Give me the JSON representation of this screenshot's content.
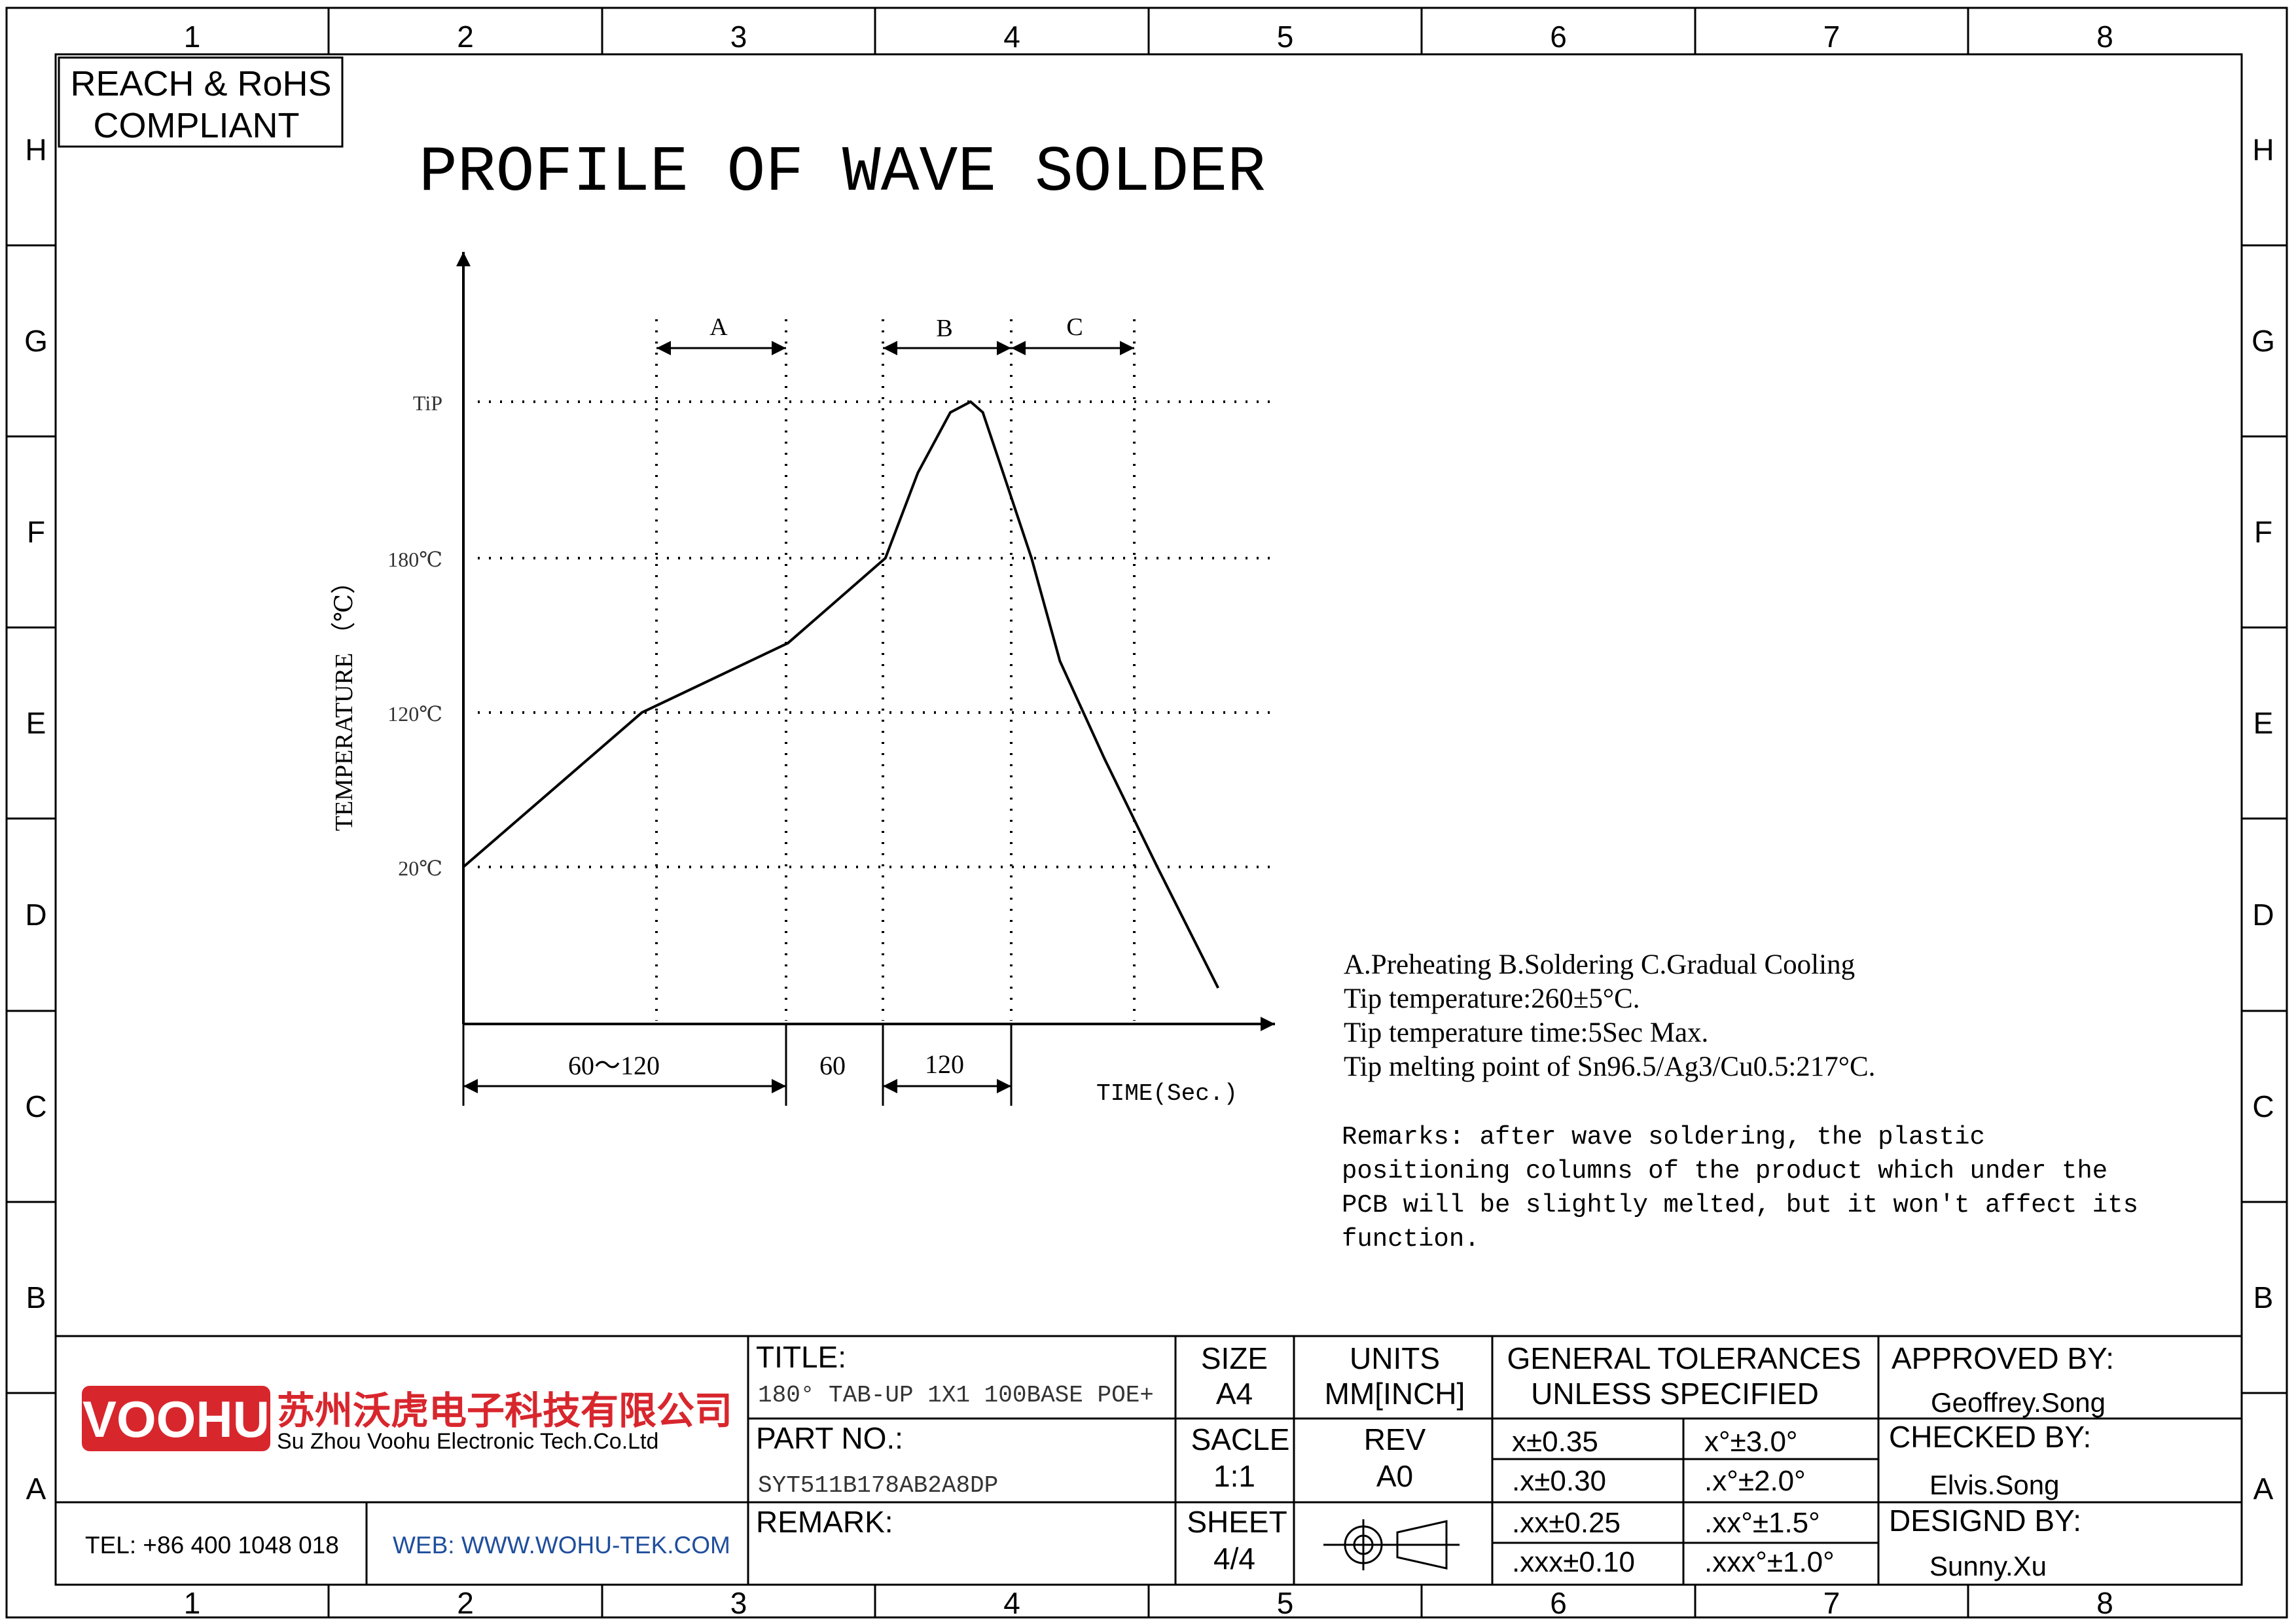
{
  "border": {
    "columns": [
      "1",
      "2",
      "3",
      "4",
      "5",
      "6",
      "7",
      "8"
    ],
    "rows": [
      "H",
      "G",
      "F",
      "E",
      "D",
      "C",
      "B",
      "A"
    ]
  },
  "compliance": {
    "line1": "REACH & RoHS",
    "line2": "COMPLIANT"
  },
  "title": "PROFILE OF WAVE SOLDER",
  "chart_data": {
    "type": "line",
    "ylabel": "TEMPERATURE （℃）",
    "xlabel": "TIME(Sec.)",
    "y_ticks": [
      "20℃",
      "120℃",
      "180℃",
      "TiP"
    ],
    "zones": [
      {
        "label": "A",
        "name": "Preheating"
      },
      {
        "label": "B",
        "name": "Soldering"
      },
      {
        "label": "C",
        "name": "Gradual Cooling"
      }
    ],
    "durations": [
      "60～120",
      "60",
      "120"
    ],
    "curve_points_relative": [
      [
        0.0,
        20
      ],
      [
        0.22,
        120
      ],
      [
        0.4,
        147
      ],
      [
        0.52,
        180
      ],
      [
        0.56,
        228
      ],
      [
        0.6,
        262
      ],
      [
        0.625,
        268
      ],
      [
        0.64,
        262
      ],
      [
        0.665,
        228
      ],
      [
        0.7,
        180
      ],
      [
        0.735,
        140
      ],
      [
        0.79,
        90
      ],
      [
        0.855,
        20
      ],
      [
        0.93,
        -60
      ]
    ]
  },
  "notes": {
    "line1": "A.Preheating  B.Soldering  C.Gradual Cooling",
    "line2": "Tip temperature:260±5°C.",
    "line3": "Tip temperature time:5Sec Max.",
    "line4": "Tip melting point of Sn96.5/Ag3/Cu0.5:217°C."
  },
  "remarks": {
    "line1": "Remarks: after wave soldering, the plastic",
    "line2": "positioning columns of the product  which under the",
    "line3": "PCB will be slightly melted, but it won't affect its",
    "line4": "function."
  },
  "title_block": {
    "logo_text": "VOOHU",
    "company_cn": "苏州沃虎电子科技有限公司",
    "company_en": "Su Zhou Voohu Electronic Tech.Co.Ltd",
    "tel": "TEL: +86 400 1048 018",
    "web": "WEB: WWW.WOHU-TEK.COM",
    "title_label": "TITLE:",
    "title_value": "180°  TAB-UP 1X1 100BASE POE+",
    "part_label": "PART NO.:",
    "part_value": "SYT511B178AB2A8DP",
    "remark_label": "REMARK:",
    "size_label": "SIZE",
    "size_value": "A4",
    "units_label": "UNITS",
    "units_value": "MM[INCH]",
    "scale_label": "SACLE",
    "scale_value": "1:1",
    "rev_label": "REV",
    "rev_value": "A0",
    "sheet_label": "SHEET",
    "sheet_value": "4/4",
    "tol_label1": "GENERAL TOLERANCES",
    "tol_label2": "UNLESS SPECIFIED",
    "tolerances": [
      [
        "x±0.35",
        "x°±3.0°"
      ],
      [
        ".x±0.30",
        ".x°±2.0°"
      ],
      [
        ".xx±0.25",
        ".xx°±1.5°"
      ],
      [
        ".xxx±0.10",
        ".xxx°±1.0°"
      ]
    ],
    "approved_label": "APPROVED BY:",
    "approved_value": "Geoffrey.Song",
    "checked_label": "CHECKED BY:",
    "checked_value": "Elvis.Song",
    "design_label": "DESIGND BY:",
    "design_value": "Sunny.Xu"
  },
  "colors": {
    "logo_red": "#d8262d",
    "web_blue": "#1f4e9c",
    "ink": "#000000"
  }
}
